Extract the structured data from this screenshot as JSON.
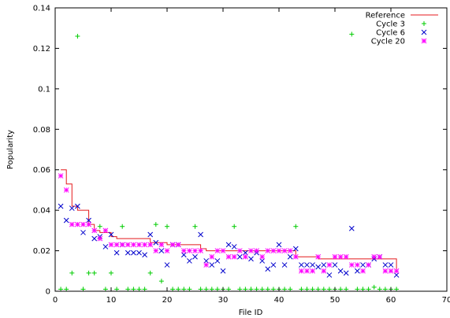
{
  "chart_data": {
    "type": "scatter",
    "title": "",
    "xlabel": "File ID",
    "ylabel": "Popularity",
    "xlim": [
      0,
      70
    ],
    "ylim": [
      0,
      0.14
    ],
    "x_ticks": [
      0,
      10,
      20,
      30,
      40,
      50,
      60,
      70
    ],
    "x_tick_labels": [
      "0",
      "10",
      "20",
      "30",
      "40",
      "50",
      "60",
      "70"
    ],
    "y_ticks": [
      0,
      0.02,
      0.04,
      0.06,
      0.08,
      0.1,
      0.12,
      0.14
    ],
    "y_tick_labels": [
      "0",
      "0.02",
      "0.04",
      "0.06",
      "0.08",
      "0.1",
      "0.12",
      "0.14"
    ],
    "grid": false,
    "legend_position": "top-right",
    "series": [
      {
        "name": "Reference",
        "kind": "line",
        "color": "#e41a1c",
        "points": [
          [
            1,
            0.06
          ],
          [
            2,
            0.053
          ],
          [
            3,
            0.042
          ],
          [
            4,
            0.04
          ],
          [
            5,
            0.04
          ],
          [
            6,
            0.033
          ],
          [
            7,
            0.03
          ],
          [
            8,
            0.029
          ],
          [
            9,
            0.029
          ],
          [
            10,
            0.027
          ],
          [
            11,
            0.026
          ],
          [
            12,
            0.026
          ],
          [
            13,
            0.026
          ],
          [
            14,
            0.026
          ],
          [
            15,
            0.026
          ],
          [
            16,
            0.026
          ],
          [
            17,
            0.024
          ],
          [
            18,
            0.024
          ],
          [
            19,
            0.024
          ],
          [
            20,
            0.023
          ],
          [
            21,
            0.023
          ],
          [
            22,
            0.023
          ],
          [
            23,
            0.023
          ],
          [
            24,
            0.023
          ],
          [
            25,
            0.023
          ],
          [
            26,
            0.021
          ],
          [
            27,
            0.02
          ],
          [
            28,
            0.02
          ],
          [
            29,
            0.02
          ],
          [
            30,
            0.02
          ],
          [
            31,
            0.02
          ],
          [
            32,
            0.02
          ],
          [
            33,
            0.02
          ],
          [
            34,
            0.02
          ],
          [
            35,
            0.02
          ],
          [
            36,
            0.02
          ],
          [
            37,
            0.02
          ],
          [
            38,
            0.02
          ],
          [
            39,
            0.02
          ],
          [
            40,
            0.02
          ],
          [
            41,
            0.02
          ],
          [
            42,
            0.02
          ],
          [
            43,
            0.017
          ],
          [
            44,
            0.017
          ],
          [
            45,
            0.017
          ],
          [
            46,
            0.017
          ],
          [
            47,
            0.016
          ],
          [
            48,
            0.016
          ],
          [
            49,
            0.016
          ],
          [
            50,
            0.016
          ],
          [
            51,
            0.016
          ],
          [
            52,
            0.016
          ],
          [
            53,
            0.016
          ],
          [
            54,
            0.016
          ],
          [
            55,
            0.016
          ],
          [
            56,
            0.016
          ],
          [
            57,
            0.016
          ],
          [
            58,
            0.016
          ],
          [
            59,
            0.016
          ],
          [
            60,
            0.016
          ],
          [
            61,
            0.01
          ]
        ]
      },
      {
        "name": "Cycle 3",
        "kind": "plus",
        "color": "#00cc00",
        "points": [
          [
            1,
            0.001
          ],
          [
            2,
            0.001
          ],
          [
            3,
            0.009
          ],
          [
            4,
            0.126
          ],
          [
            5,
            0.001
          ],
          [
            6,
            0.009
          ],
          [
            7,
            0.009
          ],
          [
            8,
            0.032
          ],
          [
            9,
            0.001
          ],
          [
            10,
            0.009
          ],
          [
            11,
            0.001
          ],
          [
            12,
            0.032
          ],
          [
            13,
            0.001
          ],
          [
            14,
            0.001
          ],
          [
            15,
            0.001
          ],
          [
            16,
            0.001
          ],
          [
            17,
            0.009
          ],
          [
            18,
            0.033
          ],
          [
            19,
            0.005
          ],
          [
            20,
            0.032
          ],
          [
            21,
            0.001
          ],
          [
            22,
            0.001
          ],
          [
            23,
            0.001
          ],
          [
            24,
            0.001
          ],
          [
            25,
            0.032
          ],
          [
            26,
            0.001
          ],
          [
            27,
            0.001
          ],
          [
            28,
            0.001
          ],
          [
            29,
            0.001
          ],
          [
            30,
            0.001
          ],
          [
            31,
            0.001
          ],
          [
            32,
            0.032
          ],
          [
            33,
            0.001
          ],
          [
            34,
            0.001
          ],
          [
            35,
            0.001
          ],
          [
            36,
            0.001
          ],
          [
            37,
            0.001
          ],
          [
            38,
            0.001
          ],
          [
            39,
            0.001
          ],
          [
            40,
            0.001
          ],
          [
            41,
            0.001
          ],
          [
            42,
            0.001
          ],
          [
            43,
            0.032
          ],
          [
            44,
            0.001
          ],
          [
            45,
            0.001
          ],
          [
            46,
            0.001
          ],
          [
            47,
            0.001
          ],
          [
            48,
            0.001
          ],
          [
            49,
            0.001
          ],
          [
            50,
            0.001
          ],
          [
            51,
            0.001
          ],
          [
            52,
            0.001
          ],
          [
            53,
            0.127
          ],
          [
            54,
            0.001
          ],
          [
            55,
            0.001
          ],
          [
            56,
            0.001
          ],
          [
            57,
            0.002
          ],
          [
            58,
            0.001
          ],
          [
            59,
            0.001
          ],
          [
            60,
            0.001
          ],
          [
            61,
            0.001
          ]
        ]
      },
      {
        "name": "Cycle 6",
        "kind": "cross",
        "color": "#0000cc",
        "points": [
          [
            1,
            0.042
          ],
          [
            2,
            0.035
          ],
          [
            3,
            0.041
          ],
          [
            4,
            0.042
          ],
          [
            5,
            0.029
          ],
          [
            6,
            0.035
          ],
          [
            7,
            0.026
          ],
          [
            8,
            0.027
          ],
          [
            9,
            0.022
          ],
          [
            10,
            0.028
          ],
          [
            11,
            0.019
          ],
          [
            12,
            0.023
          ],
          [
            13,
            0.019
          ],
          [
            14,
            0.019
          ],
          [
            15,
            0.019
          ],
          [
            16,
            0.018
          ],
          [
            17,
            0.028
          ],
          [
            18,
            0.024
          ],
          [
            19,
            0.02
          ],
          [
            20,
            0.013
          ],
          [
            21,
            0.023
          ],
          [
            22,
            0.023
          ],
          [
            23,
            0.018
          ],
          [
            24,
            0.015
          ],
          [
            25,
            0.017
          ],
          [
            26,
            0.028
          ],
          [
            27,
            0.015
          ],
          [
            28,
            0.013
          ],
          [
            29,
            0.015
          ],
          [
            30,
            0.01
          ],
          [
            31,
            0.023
          ],
          [
            32,
            0.022
          ],
          [
            33,
            0.017
          ],
          [
            34,
            0.019
          ],
          [
            35,
            0.016
          ],
          [
            36,
            0.019
          ],
          [
            37,
            0.015
          ],
          [
            38,
            0.011
          ],
          [
            39,
            0.013
          ],
          [
            40,
            0.023
          ],
          [
            41,
            0.013
          ],
          [
            42,
            0.017
          ],
          [
            43,
            0.021
          ],
          [
            44,
            0.013
          ],
          [
            45,
            0.013
          ],
          [
            46,
            0.013
          ],
          [
            47,
            0.012
          ],
          [
            48,
            0.013
          ],
          [
            49,
            0.008
          ],
          [
            50,
            0.013
          ],
          [
            51,
            0.01
          ],
          [
            52,
            0.009
          ],
          [
            53,
            0.031
          ],
          [
            54,
            0.01
          ],
          [
            55,
            0.013
          ],
          [
            56,
            0.013
          ],
          [
            57,
            0.016
          ],
          [
            58,
            0.017
          ],
          [
            59,
            0.013
          ],
          [
            60,
            0.013
          ],
          [
            61,
            0.008
          ]
        ]
      },
      {
        "name": "Cycle 20",
        "kind": "star",
        "color": "#ff00ff",
        "points": [
          [
            1,
            0.057
          ],
          [
            2,
            0.05
          ],
          [
            3,
            0.033
          ],
          [
            4,
            0.033
          ],
          [
            5,
            0.033
          ],
          [
            6,
            0.033
          ],
          [
            7,
            0.03
          ],
          [
            8,
            0.026
          ],
          [
            9,
            0.03
          ],
          [
            10,
            0.023
          ],
          [
            11,
            0.023
          ],
          [
            12,
            0.023
          ],
          [
            13,
            0.023
          ],
          [
            14,
            0.023
          ],
          [
            15,
            0.023
          ],
          [
            16,
            0.023
          ],
          [
            17,
            0.023
          ],
          [
            18,
            0.02
          ],
          [
            19,
            0.023
          ],
          [
            20,
            0.02
          ],
          [
            21,
            0.023
          ],
          [
            22,
            0.023
          ],
          [
            23,
            0.02
          ],
          [
            24,
            0.02
          ],
          [
            25,
            0.02
          ],
          [
            26,
            0.02
          ],
          [
            27,
            0.013
          ],
          [
            28,
            0.017
          ],
          [
            29,
            0.02
          ],
          [
            30,
            0.02
          ],
          [
            31,
            0.017
          ],
          [
            32,
            0.017
          ],
          [
            33,
            0.02
          ],
          [
            34,
            0.017
          ],
          [
            35,
            0.02
          ],
          [
            36,
            0.02
          ],
          [
            37,
            0.017
          ],
          [
            38,
            0.02
          ],
          [
            39,
            0.02
          ],
          [
            40,
            0.02
          ],
          [
            41,
            0.02
          ],
          [
            42,
            0.02
          ],
          [
            43,
            0.017
          ],
          [
            44,
            0.01
          ],
          [
            45,
            0.01
          ],
          [
            46,
            0.01
          ],
          [
            47,
            0.017
          ],
          [
            48,
            0.01
          ],
          [
            49,
            0.013
          ],
          [
            50,
            0.017
          ],
          [
            51,
            0.017
          ],
          [
            52,
            0.017
          ],
          [
            53,
            0.013
          ],
          [
            54,
            0.013
          ],
          [
            55,
            0.01
          ],
          [
            56,
            0.013
          ],
          [
            57,
            0.017
          ],
          [
            58,
            0.017
          ],
          [
            59,
            0.01
          ],
          [
            60,
            0.01
          ],
          [
            61,
            0.01
          ]
        ]
      }
    ]
  }
}
